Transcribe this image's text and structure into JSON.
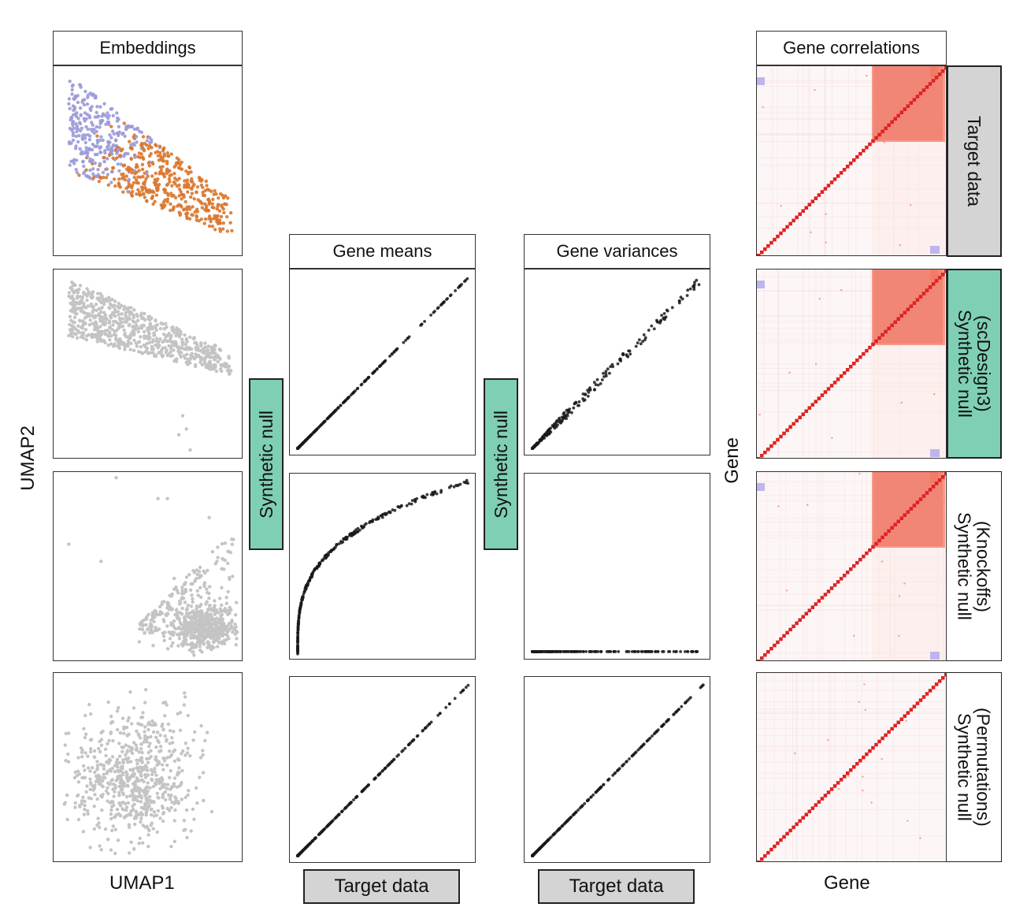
{
  "colors": {
    "target_fill": "#d4d4d4",
    "synthetic_fill": "#7fcfb5",
    "orange": "#d9772e",
    "purple": "#9a9ad8",
    "gray_point": "#c4c4c4",
    "black_point": "#1a1a1a",
    "heat_red": "#f27a66",
    "heat_diag": "#dd2222",
    "heat_blue": "#b7aeee"
  },
  "labels": {
    "embeddings_header": "Embeddings",
    "gene_means_header": "Gene means",
    "gene_variances_header": "Gene variances",
    "gene_correlations_header": "Gene correlations",
    "umap_x": "UMAP1",
    "umap_y": "UMAP2",
    "gene_x": "Gene",
    "gene_y": "Gene",
    "synthetic_null": "Synthetic null",
    "target_data_means": "Target data",
    "target_data_variances": "Target data"
  },
  "row_labels": [
    {
      "lines": [
        "Target data"
      ],
      "fill": "#d4d4d4"
    },
    {
      "lines": [
        "Synthetic null",
        "(scDesign3)"
      ],
      "fill": "#7fcfb5"
    },
    {
      "lines": [
        "Synthetic null",
        "(Knockoffs)"
      ],
      "fill": "#ffffff"
    },
    {
      "lines": [
        "Synthetic null",
        "(Permutations)"
      ],
      "fill": "#ffffff"
    }
  ],
  "chart_data": [
    {
      "type": "scatter",
      "panel": "embeddings",
      "xlabel": "UMAP1",
      "ylabel": "UMAP2",
      "rows": [
        "Target data",
        "Synthetic null (scDesign3)",
        "Synthetic null (Knockoffs)",
        "Synthetic null (Permutations)"
      ],
      "series": [
        {
          "name": "Target data (group 1)"
        },
        {
          "name": "Target data (group 2)"
        }
      ]
    },
    {
      "type": "scatter",
      "panel": "Gene means",
      "xlabel": "Target data",
      "ylabel": "Synthetic null",
      "rows": [
        "Synthetic null (scDesign3)",
        "Synthetic null (Knockoffs)",
        "Synthetic null (Permutations)"
      ],
      "shapes": [
        "identity",
        "saturating",
        "identity"
      ]
    },
    {
      "type": "scatter",
      "panel": "Gene variances",
      "xlabel": "Target data",
      "ylabel": "Synthetic null",
      "rows": [
        "Synthetic null (scDesign3)",
        "Synthetic null (Knockoffs)",
        "Synthetic null (Permutations)"
      ],
      "shapes": [
        "identity",
        "flat",
        "identity"
      ]
    },
    {
      "type": "heatmap",
      "panel": "Gene correlations",
      "xlabel": "Gene",
      "ylabel": "Gene",
      "rows": [
        "Target data",
        "Synthetic null (scDesign3)",
        "Synthetic null (Knockoffs)",
        "Synthetic null (Permutations)"
      ],
      "correlated_block": [
        true,
        true,
        true,
        false
      ]
    }
  ]
}
